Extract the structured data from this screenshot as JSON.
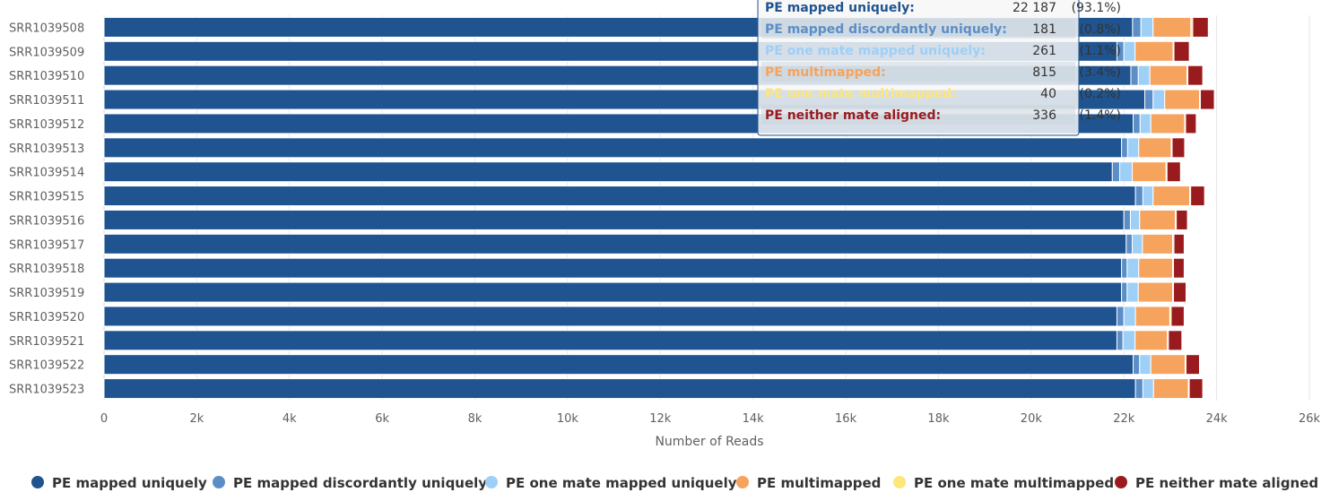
{
  "chart_data": {
    "type": "bar",
    "orientation": "horizontal",
    "stacked": true,
    "xlabel": "Number of Reads",
    "xlim": [
      0,
      26000
    ],
    "xticks": [
      0,
      2000,
      4000,
      6000,
      8000,
      10000,
      12000,
      14000,
      16000,
      18000,
      20000,
      22000,
      24000,
      26000
    ],
    "xtick_labels": [
      "0",
      "2k",
      "4k",
      "6k",
      "8k",
      "10k",
      "12k",
      "14k",
      "16k",
      "18k",
      "20k",
      "22k",
      "24k",
      "26k"
    ],
    "grid": true,
    "legend_position": "bottom",
    "categories": [
      "SRR1039508",
      "SRR1039509",
      "SRR1039510",
      "SRR1039511",
      "SRR1039512",
      "SRR1039513",
      "SRR1039514",
      "SRR1039515",
      "SRR1039516",
      "SRR1039517",
      "SRR1039518",
      "SRR1039519",
      "SRR1039520",
      "SRR1039521",
      "SRR1039522",
      "SRR1039523"
    ],
    "series": [
      {
        "name": "PE mapped uniquely",
        "color": "#1f5490",
        "values": [
          22187,
          21850,
          22150,
          22450,
          22200,
          21950,
          21750,
          22250,
          22000,
          22050,
          21950,
          21950,
          21850,
          21850,
          22200,
          22250
        ]
      },
      {
        "name": "PE mapped discordantly uniquely",
        "color": "#5b8ec7",
        "values": [
          181,
          150,
          160,
          180,
          150,
          130,
          160,
          160,
          140,
          130,
          120,
          120,
          150,
          130,
          140,
          160
        ]
      },
      {
        "name": "PE one mate mapped uniquely",
        "color": "#9ecff7",
        "values": [
          261,
          240,
          250,
          250,
          230,
          240,
          270,
          220,
          200,
          220,
          250,
          240,
          250,
          260,
          240,
          230
        ]
      },
      {
        "name": "PE multimapped",
        "color": "#f6a35d",
        "values": [
          815,
          820,
          800,
          750,
          730,
          700,
          730,
          790,
          770,
          650,
          730,
          740,
          740,
          700,
          740,
          750
        ]
      },
      {
        "name": "PE one mate multimapped",
        "color": "#fde67a",
        "values": [
          40,
          20,
          20,
          20,
          20,
          20,
          20,
          20,
          20,
          30,
          20,
          20,
          30,
          20,
          20,
          20
        ]
      },
      {
        "name": "PE neither mate aligned",
        "color": "#9a1b1e",
        "values": [
          336,
          330,
          320,
          300,
          230,
          270,
          290,
          300,
          240,
          220,
          230,
          270,
          280,
          290,
          290,
          290
        ]
      }
    ]
  },
  "tooltip": {
    "rows": [
      {
        "label": "PE mapped uniquely:",
        "value": "22 187",
        "pct": "(93.1%)",
        "color": "#1f5490"
      },
      {
        "label": "PE mapped discordantly uniquely:",
        "value": "181",
        "pct": "(0.8%)",
        "color": "#5b8ec7"
      },
      {
        "label": "PE one mate mapped uniquely:",
        "value": "261",
        "pct": "(1.1%)",
        "color": "#9ecff7"
      },
      {
        "label": "PE multimapped:",
        "value": "815",
        "pct": "(3.4%)",
        "color": "#f6a35d"
      },
      {
        "label": "PE one mate multimapped:",
        "value": "40",
        "pct": "(0.2%)",
        "color": "#fde67a"
      },
      {
        "label": "PE neither mate aligned:",
        "value": "336",
        "pct": "(1.4%)",
        "color": "#9a1b1e"
      }
    ]
  }
}
